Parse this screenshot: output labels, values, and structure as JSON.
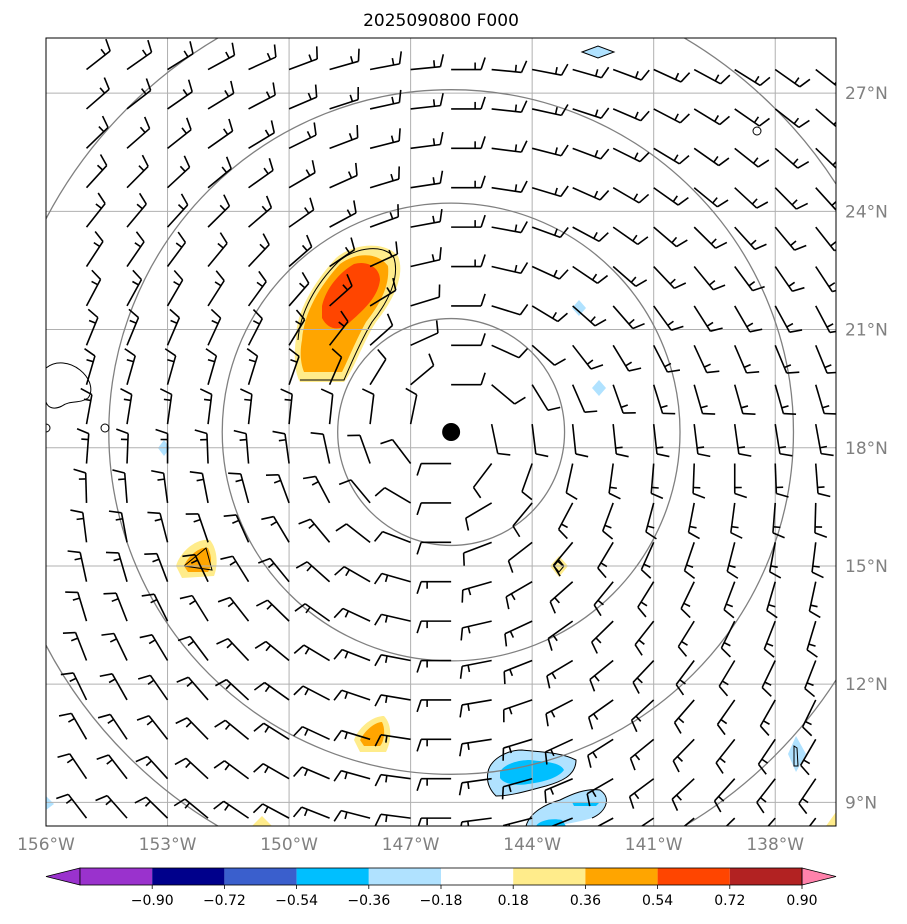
{
  "title": "2025090800 F000",
  "map": {
    "lon_min": -156.0,
    "lon_max": -136.5,
    "lat_min": 8.4,
    "lat_max": 28.4,
    "longitude_ticks": [
      {
        "value": -156,
        "label": "156°W"
      },
      {
        "value": -153,
        "label": "153°W"
      },
      {
        "value": -150,
        "label": "150°W"
      },
      {
        "value": -147,
        "label": "147°W"
      },
      {
        "value": -144,
        "label": "144°W"
      },
      {
        "value": -141,
        "label": "141°W"
      },
      {
        "value": -138,
        "label": "138°W"
      }
    ],
    "latitude_ticks": [
      {
        "value": 9,
        "label": "9°N"
      },
      {
        "value": 12,
        "label": "12°N"
      },
      {
        "value": 15,
        "label": "15°N"
      },
      {
        "value": 18,
        "label": "18°N"
      },
      {
        "value": 21,
        "label": "21°N"
      },
      {
        "value": 24,
        "label": "24°N"
      },
      {
        "value": 27,
        "label": "27°N"
      }
    ],
    "gridlines": true,
    "storm_center": {
      "lon": -146.0,
      "lat": 18.4
    },
    "range_rings_deg": [
      2.8,
      5.65,
      8.45,
      11.3
    ],
    "colors": {
      "gridline": "#b0b0b0",
      "ring": "#808080",
      "barb": "#000000",
      "coast": "#000000"
    }
  },
  "colorbar": {
    "levels": [
      "−0.90",
      "−0.72",
      "−0.54",
      "−0.36",
      "−0.18",
      "0.18",
      "0.36",
      "0.54",
      "0.72",
      "0.90"
    ],
    "colors": [
      "#9a32cd",
      "#00008b",
      "#3a5fcd",
      "#00bfff",
      "#b0e2ff",
      "#ffffff",
      "#ffec8b",
      "#ffa500",
      "#ff4500",
      "#b22222"
    ],
    "extend_low": "#9a32cd",
    "extend_high": "#ff82ab"
  },
  "field_features": [
    {
      "name": "positive-maximum-north",
      "level": 0.72
    },
    {
      "name": "positive-patch-west",
      "level": 0.54
    },
    {
      "name": "positive-patch-south",
      "level": 0.54
    },
    {
      "name": "negative-patch-south",
      "level": -0.54
    }
  ]
}
